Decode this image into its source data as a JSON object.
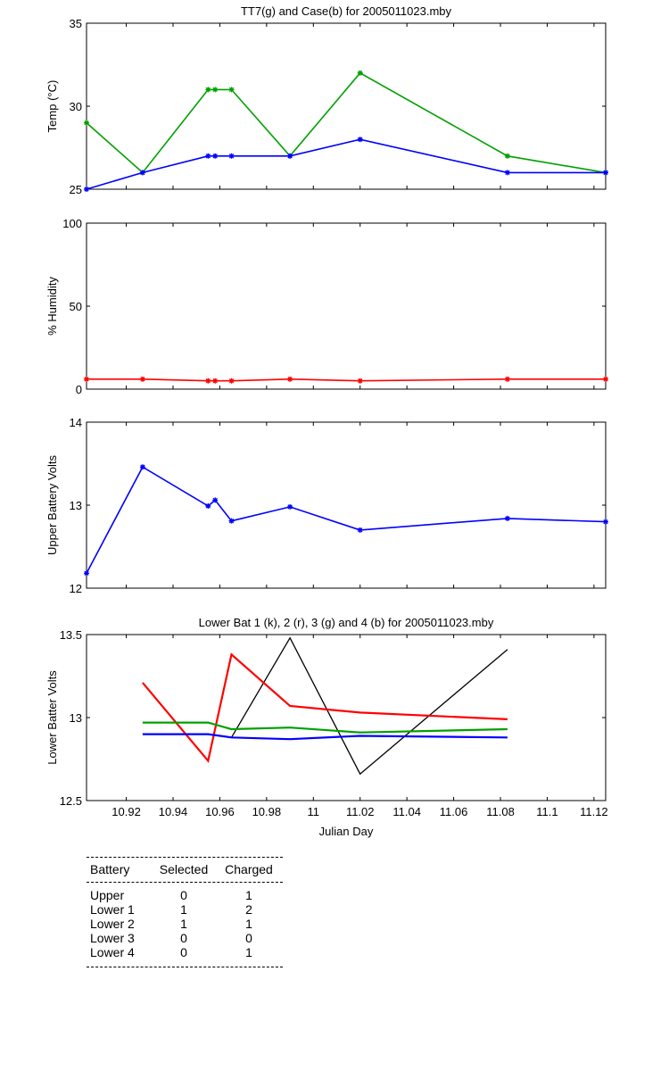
{
  "chart_data": [
    {
      "type": "line",
      "title": "TT7(g) and Case(b) for 2005011023.mby",
      "xlabel": "",
      "ylabel": "Temp  (°C)",
      "xlim": [
        10.903,
        11.125
      ],
      "ylim": [
        25,
        35
      ],
      "yticks": [
        "25",
        "30",
        "35"
      ],
      "grid": false,
      "series": [
        {
          "color": "#00a000",
          "marker": "*",
          "x": [
            10.903,
            10.927,
            10.955,
            10.958,
            10.965,
            10.99,
            11.02,
            11.083,
            11.125
          ],
          "y": [
            29.0,
            26.0,
            31.0,
            31.0,
            31.0,
            27.0,
            32.0,
            27.0,
            26.0
          ]
        },
        {
          "color": "#0000ff",
          "marker": "*",
          "x": [
            10.903,
            10.927,
            10.955,
            10.958,
            10.965,
            10.99,
            11.02,
            11.083,
            11.125
          ],
          "y": [
            25.0,
            26.0,
            27.0,
            27.0,
            27.0,
            27.0,
            28.0,
            26.0,
            26.0
          ]
        }
      ]
    },
    {
      "type": "line",
      "title": "",
      "xlabel": "",
      "ylabel": "% Humidity",
      "xlim": [
        10.903,
        11.125
      ],
      "ylim": [
        0,
        100
      ],
      "yticks": [
        "0",
        "50",
        "100"
      ],
      "grid": false,
      "series": [
        {
          "color": "#ff0000",
          "marker": "*",
          "x": [
            10.903,
            10.927,
            10.955,
            10.958,
            10.965,
            10.99,
            11.02,
            11.083,
            11.125
          ],
          "y": [
            6.0,
            6.0,
            5.0,
            5.0,
            5.0,
            6.0,
            5.0,
            6.0,
            6.0
          ]
        }
      ]
    },
    {
      "type": "line",
      "title": "",
      "xlabel": "",
      "ylabel": "Upper Battery Volts",
      "xlim": [
        10.903,
        11.125
      ],
      "ylim": [
        12,
        14
      ],
      "yticks": [
        "12",
        "13",
        "14"
      ],
      "grid": false,
      "series": [
        {
          "color": "#0000ff",
          "marker": "*",
          "x": [
            10.903,
            10.927,
            10.955,
            10.958,
            10.965,
            10.99,
            11.02,
            11.083,
            11.125
          ],
          "y": [
            12.18,
            13.46,
            12.99,
            13.06,
            12.81,
            12.98,
            12.7,
            12.84,
            12.8
          ]
        }
      ]
    },
    {
      "type": "line",
      "title": "Lower Bat 1 (k), 2 (r), 3 (g) and 4 (b) for 2005011023.mby",
      "xlabel": "Julian Day",
      "ylabel": "Lower Batter Volts",
      "xlim": [
        10.903,
        11.125
      ],
      "ylim": [
        12.5,
        13.5
      ],
      "yticks": [
        "12.5",
        "13",
        "13.5"
      ],
      "xticks": [
        "10.92",
        "10.94",
        "10.96",
        "10.98",
        "11",
        "11.02",
        "11.04",
        "11.06",
        "11.08",
        "11.1",
        "11.12"
      ],
      "grid": false,
      "series": [
        {
          "color": "#000000",
          "x": [
            10.965,
            10.99,
            11.02,
            11.083
          ],
          "y": [
            12.88,
            13.48,
            12.66,
            13.41
          ]
        },
        {
          "color": "#ff0000",
          "x": [
            10.927,
            10.955,
            10.965,
            10.99,
            11.02,
            11.083
          ],
          "y": [
            13.21,
            12.74,
            13.38,
            13.07,
            13.03,
            12.99
          ]
        },
        {
          "color": "#00a000",
          "x": [
            10.927,
            10.955,
            10.965,
            10.99,
            11.02,
            11.083
          ],
          "y": [
            12.97,
            12.97,
            12.93,
            12.94,
            12.91,
            12.93
          ]
        },
        {
          "color": "#0000ff",
          "x": [
            10.927,
            10.955,
            10.965,
            10.99,
            11.02,
            11.083
          ],
          "y": [
            12.9,
            12.9,
            12.88,
            12.87,
            12.89,
            12.88
          ]
        }
      ]
    }
  ],
  "status_table": {
    "headers": [
      "Battery",
      "Selected",
      "Charged"
    ],
    "rows": [
      [
        "Upper",
        "0",
        "1"
      ],
      [
        "Lower 1",
        "1",
        "2"
      ],
      [
        "Lower 2",
        "1",
        "1"
      ],
      [
        "Lower 3",
        "0",
        "0"
      ],
      [
        "Lower 4",
        "0",
        "1"
      ]
    ]
  }
}
